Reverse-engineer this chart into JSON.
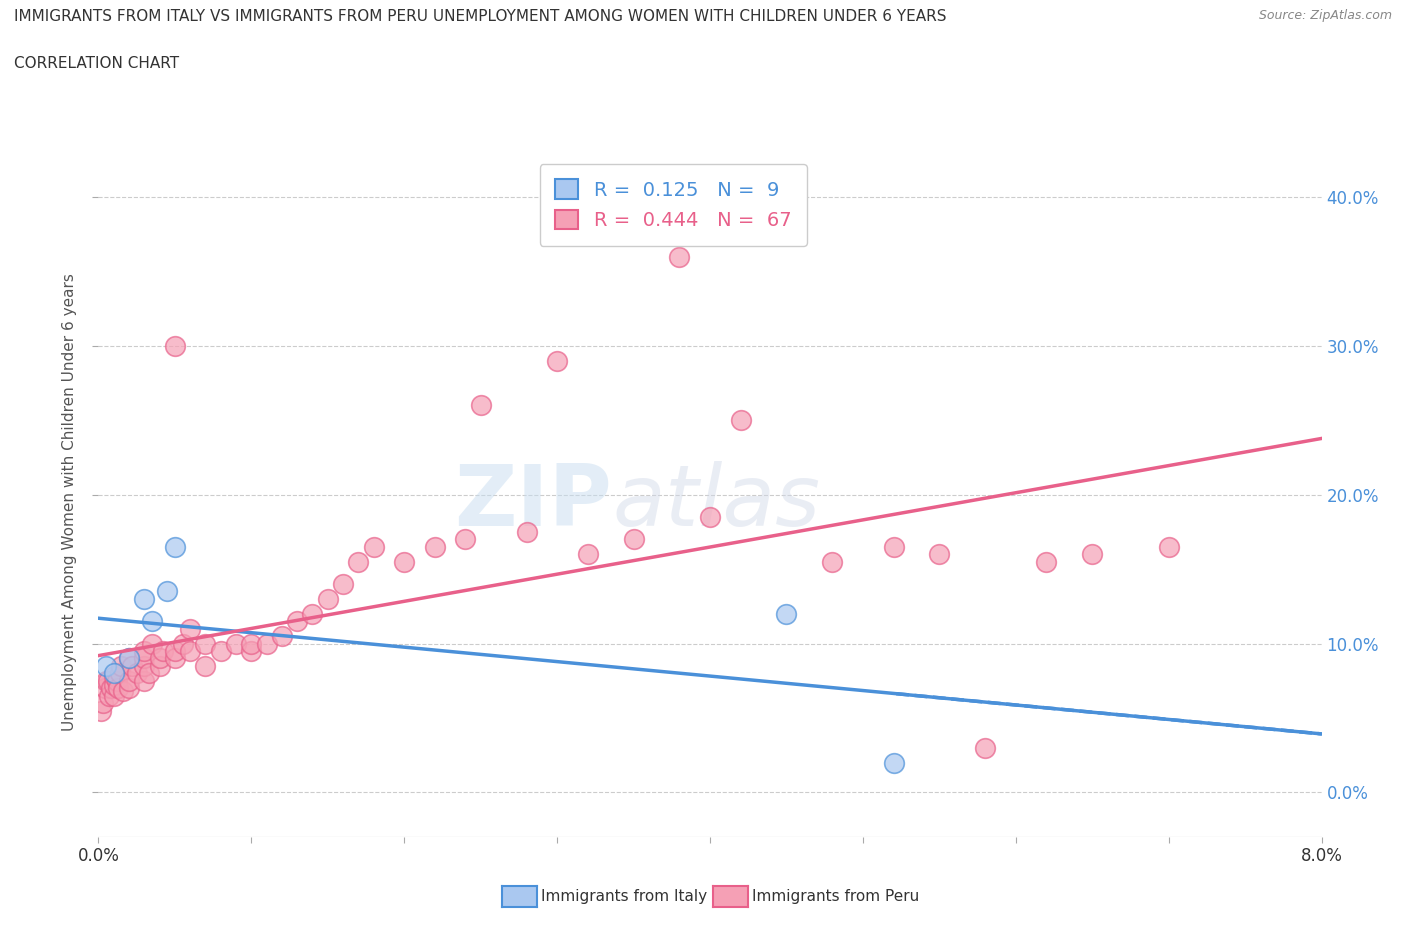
{
  "title_line1": "IMMIGRANTS FROM ITALY VS IMMIGRANTS FROM PERU UNEMPLOYMENT AMONG WOMEN WITH CHILDREN UNDER 6 YEARS",
  "title_line2": "CORRELATION CHART",
  "source": "Source: ZipAtlas.com",
  "ylabel": "Unemployment Among Women with Children Under 6 years",
  "xmin": 0.0,
  "xmax": 0.08,
  "ymin": -0.03,
  "ymax": 0.42,
  "yticks": [
    0.0,
    0.1,
    0.2,
    0.3,
    0.4
  ],
  "xticks": [
    0.0,
    0.01,
    0.02,
    0.03,
    0.04,
    0.05,
    0.06,
    0.07,
    0.08
  ],
  "italy_color": "#aac8f0",
  "peru_color": "#f5a0b5",
  "italy_edge_color": "#4a90d9",
  "peru_edge_color": "#e8608a",
  "italy_line_color": "#4a90d9",
  "peru_line_color": "#e8608a",
  "italy_R": 0.125,
  "italy_N": 9,
  "peru_R": 0.444,
  "peru_N": 67,
  "legend_label_italy": "Immigrants from Italy",
  "legend_label_peru": "Immigrants from Peru",
  "watermark_zip": "ZIP",
  "watermark_atlas": "atlas",
  "background_color": "#ffffff",
  "grid_color": "#cccccc",
  "italy_scatter_x": [
    0.0005,
    0.001,
    0.002,
    0.003,
    0.0035,
    0.0045,
    0.005,
    0.045,
    0.052
  ],
  "italy_scatter_y": [
    0.085,
    0.08,
    0.09,
    0.13,
    0.115,
    0.135,
    0.165,
    0.12,
    0.02
  ],
  "peru_scatter_x": [
    0.0002,
    0.0003,
    0.0004,
    0.0005,
    0.0006,
    0.0007,
    0.0008,
    0.001,
    0.001,
    0.001,
    0.0012,
    0.0013,
    0.0014,
    0.0015,
    0.0016,
    0.002,
    0.002,
    0.002,
    0.0022,
    0.0025,
    0.003,
    0.003,
    0.003,
    0.003,
    0.0033,
    0.0035,
    0.004,
    0.004,
    0.0042,
    0.005,
    0.005,
    0.005,
    0.0055,
    0.006,
    0.006,
    0.007,
    0.007,
    0.008,
    0.009,
    0.01,
    0.01,
    0.011,
    0.012,
    0.013,
    0.014,
    0.015,
    0.016,
    0.017,
    0.018,
    0.02,
    0.022,
    0.024,
    0.025,
    0.028,
    0.03,
    0.032,
    0.035,
    0.038,
    0.04,
    0.042,
    0.048,
    0.052,
    0.055,
    0.058,
    0.062,
    0.065,
    0.07
  ],
  "peru_scatter_y": [
    0.055,
    0.06,
    0.07,
    0.075,
    0.075,
    0.065,
    0.07,
    0.065,
    0.072,
    0.078,
    0.075,
    0.07,
    0.08,
    0.085,
    0.068,
    0.07,
    0.075,
    0.09,
    0.085,
    0.08,
    0.075,
    0.085,
    0.09,
    0.095,
    0.08,
    0.1,
    0.085,
    0.09,
    0.095,
    0.09,
    0.3,
    0.095,
    0.1,
    0.095,
    0.11,
    0.085,
    0.1,
    0.095,
    0.1,
    0.095,
    0.1,
    0.1,
    0.105,
    0.115,
    0.12,
    0.13,
    0.14,
    0.155,
    0.165,
    0.155,
    0.165,
    0.17,
    0.26,
    0.175,
    0.29,
    0.16,
    0.17,
    0.36,
    0.185,
    0.25,
    0.155,
    0.165,
    0.16,
    0.03,
    0.155,
    0.16,
    0.165
  ]
}
